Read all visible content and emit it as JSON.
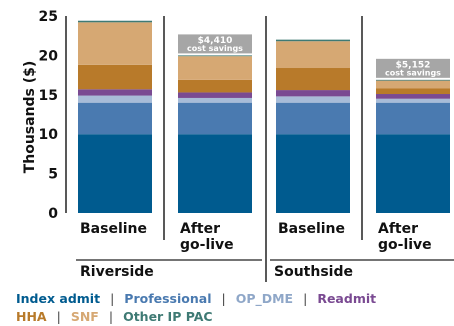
{
  "chart_data": {
    "type": "bar",
    "stacked": true,
    "ylabel": "Thousands ($)",
    "ylim": [
      0,
      25
    ],
    "yticks": [
      0,
      5,
      10,
      15,
      20,
      25
    ],
    "groups": [
      "Riverside",
      "Southside"
    ],
    "categories": [
      "Baseline",
      [
        "After",
        "go-live"
      ],
      "Baseline",
      [
        "After",
        "go-live"
      ]
    ],
    "series": [
      {
        "name": "Index admit",
        "color": "#005b8f",
        "values": [
          10.0,
          10.0,
          10.0,
          10.0
        ]
      },
      {
        "name": "Professional",
        "color": "#4a7ab0",
        "values": [
          4.0,
          4.0,
          4.0,
          4.0
        ]
      },
      {
        "name": "OP_DME",
        "color": "#a8bcd8",
        "values": [
          0.9,
          0.6,
          0.8,
          0.5
        ]
      },
      {
        "name": "Readmit",
        "color": "#7a4a92",
        "values": [
          0.8,
          0.7,
          0.8,
          0.6
        ]
      },
      {
        "name": "HHA",
        "color": "#b87a2a",
        "values": [
          3.1,
          1.6,
          2.8,
          0.7
        ]
      },
      {
        "name": "SNF",
        "color": "#d6a873",
        "values": [
          5.4,
          3.0,
          3.4,
          1.0
        ]
      },
      {
        "name": "Other IP PAC",
        "color": "#3f7a74",
        "values": [
          0.2,
          0.1,
          0.2,
          0.1
        ]
      }
    ],
    "annotations": [
      {
        "bar_index": 1,
        "lines": [
          "$4,410",
          "cost savings"
        ]
      },
      {
        "bar_index": 3,
        "lines": [
          "$5,152",
          "cost savings"
        ]
      }
    ],
    "legend_rows": [
      [
        0,
        1,
        2,
        3
      ],
      [
        4,
        5,
        6
      ]
    ],
    "legend_placement": "bottom",
    "grid": false
  }
}
